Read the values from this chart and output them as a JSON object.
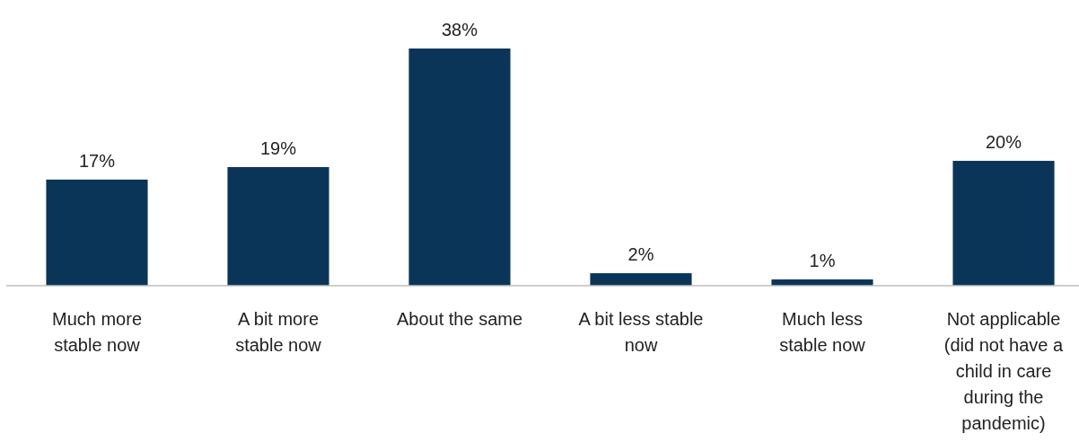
{
  "chart_data": {
    "type": "bar",
    "categories": [
      "Much more stable now",
      "A bit more stable now",
      "About the same",
      "A bit less stable now",
      "Much less stable now",
      "Not applicable (did not have a child in care during the pandemic)"
    ],
    "values": [
      17,
      19,
      38,
      2,
      1,
      20
    ],
    "value_labels": [
      "17%",
      "19%",
      "38%",
      "2%",
      "1%",
      "20%"
    ],
    "color": "#0b3558",
    "relative": false
  }
}
